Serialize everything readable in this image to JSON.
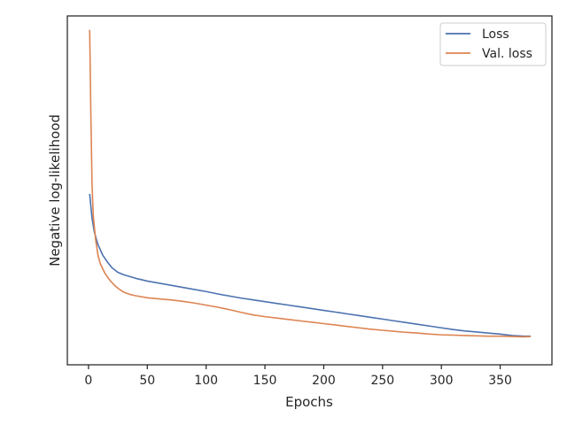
{
  "chart_data": {
    "type": "line",
    "title": "",
    "xlabel": "Epochs",
    "ylabel": "Negative log-likelihood",
    "xlim": [
      -18,
      394
    ],
    "ylim": [
      0,
      1
    ],
    "x_ticks": [
      0,
      50,
      100,
      150,
      200,
      250,
      300,
      350
    ],
    "y_ticks_labeled": false,
    "grid": false,
    "legend_position": "top-right",
    "series": [
      {
        "name": "Loss",
        "color": "#4c72b0",
        "points": [
          [
            1,
            0.49
          ],
          [
            3,
            0.42
          ],
          [
            5,
            0.38
          ],
          [
            8,
            0.345
          ],
          [
            12,
            0.315
          ],
          [
            16,
            0.295
          ],
          [
            20,
            0.278
          ],
          [
            25,
            0.265
          ],
          [
            30,
            0.258
          ],
          [
            40,
            0.248
          ],
          [
            50,
            0.24
          ],
          [
            60,
            0.234
          ],
          [
            70,
            0.228
          ],
          [
            80,
            0.222
          ],
          [
            90,
            0.216
          ],
          [
            100,
            0.21
          ],
          [
            110,
            0.203
          ],
          [
            120,
            0.197
          ],
          [
            130,
            0.191
          ],
          [
            140,
            0.186
          ],
          [
            150,
            0.181
          ],
          [
            160,
            0.176
          ],
          [
            170,
            0.171
          ],
          [
            180,
            0.166
          ],
          [
            190,
            0.161
          ],
          [
            200,
            0.156
          ],
          [
            210,
            0.151
          ],
          [
            220,
            0.146
          ],
          [
            230,
            0.141
          ],
          [
            240,
            0.136
          ],
          [
            250,
            0.131
          ],
          [
            260,
            0.126
          ],
          [
            270,
            0.121
          ],
          [
            280,
            0.116
          ],
          [
            290,
            0.111
          ],
          [
            300,
            0.106
          ],
          [
            310,
            0.101
          ],
          [
            320,
            0.097
          ],
          [
            330,
            0.094
          ],
          [
            340,
            0.091
          ],
          [
            350,
            0.088
          ],
          [
            360,
            0.084
          ],
          [
            370,
            0.082
          ],
          [
            376,
            0.082
          ]
        ]
      },
      {
        "name": "Val. loss",
        "color": "#dd8452",
        "points": [
          [
            1,
            0.96
          ],
          [
            2,
            0.72
          ],
          [
            3,
            0.52
          ],
          [
            4,
            0.43
          ],
          [
            6,
            0.36
          ],
          [
            8,
            0.315
          ],
          [
            10,
            0.29
          ],
          [
            14,
            0.262
          ],
          [
            18,
            0.243
          ],
          [
            22,
            0.228
          ],
          [
            26,
            0.217
          ],
          [
            30,
            0.208
          ],
          [
            35,
            0.202
          ],
          [
            40,
            0.198
          ],
          [
            50,
            0.192
          ],
          [
            60,
            0.189
          ],
          [
            70,
            0.186
          ],
          [
            80,
            0.182
          ],
          [
            90,
            0.177
          ],
          [
            100,
            0.171
          ],
          [
            110,
            0.165
          ],
          [
            120,
            0.158
          ],
          [
            130,
            0.15
          ],
          [
            140,
            0.143
          ],
          [
            150,
            0.138
          ],
          [
            160,
            0.134
          ],
          [
            170,
            0.13
          ],
          [
            180,
            0.126
          ],
          [
            190,
            0.122
          ],
          [
            200,
            0.118
          ],
          [
            210,
            0.114
          ],
          [
            220,
            0.11
          ],
          [
            230,
            0.106
          ],
          [
            240,
            0.102
          ],
          [
            250,
            0.099
          ],
          [
            260,
            0.096
          ],
          [
            270,
            0.093
          ],
          [
            280,
            0.091
          ],
          [
            290,
            0.088
          ],
          [
            300,
            0.086
          ],
          [
            310,
            0.085
          ],
          [
            320,
            0.084
          ],
          [
            330,
            0.083
          ],
          [
            340,
            0.082
          ],
          [
            350,
            0.082
          ],
          [
            360,
            0.081
          ],
          [
            370,
            0.08
          ],
          [
            376,
            0.081
          ]
        ]
      }
    ]
  }
}
